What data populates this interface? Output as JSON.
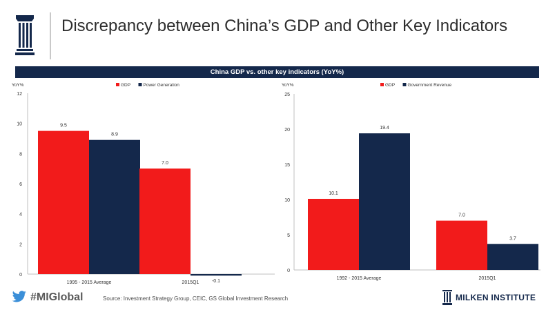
{
  "title": "Discrepancy between China’s GDP and Other Key Indicators",
  "header": "China GDP vs. other key indicators (YoY%)",
  "footer": {
    "hashtag": "#MIGlobal",
    "source": "Source: Investment Strategy Group, CEIC, GS Global Investment Research",
    "brand": "MILKEN INSTITUTE"
  },
  "colors": {
    "gdp": "#f21b1b",
    "other": "#14284b",
    "header": "#14284b"
  },
  "icons": {
    "logo": "milken-column-icon",
    "social": "twitter-bird-icon"
  },
  "chart_data": [
    {
      "type": "bar",
      "ylabel": "YoY%",
      "ylim": [
        0,
        12
      ],
      "yticks": [
        0,
        2,
        4,
        6,
        8,
        10,
        12
      ],
      "categories": [
        "1995 - 2015 Average",
        "2015Q1"
      ],
      "series": [
        {
          "name": "GDP",
          "values": [
            9.5,
            7.0
          ],
          "labels": [
            "9.5",
            "7.0"
          ]
        },
        {
          "name": "Power Generation",
          "values": [
            8.9,
            -0.1
          ],
          "labels": [
            "8.9",
            "-0.1"
          ]
        }
      ],
      "legend": "top"
    },
    {
      "type": "bar",
      "ylabel": "YoY%",
      "ylim": [
        0,
        25
      ],
      "yticks": [
        0,
        5,
        10,
        15,
        20,
        25
      ],
      "categories": [
        "1992 - 2015 Average",
        "2015Q1"
      ],
      "series": [
        {
          "name": "GDP",
          "values": [
            10.1,
            7.0
          ],
          "labels": [
            "10.1",
            "7.0"
          ]
        },
        {
          "name": "Government Revenue",
          "values": [
            19.4,
            3.7
          ],
          "labels": [
            "19.4",
            "3.7"
          ]
        }
      ],
      "legend": "top"
    }
  ]
}
